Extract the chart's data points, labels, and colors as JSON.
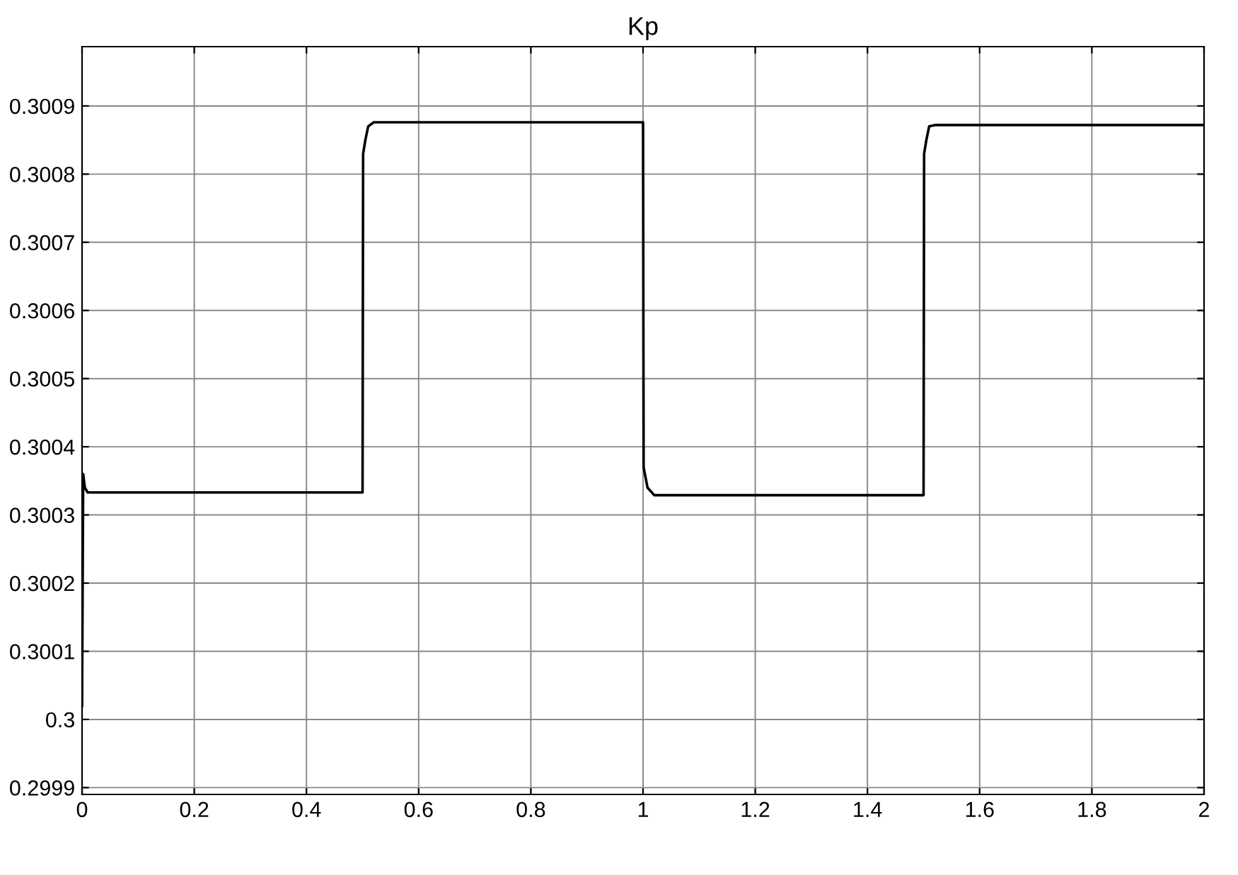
{
  "chart_data": {
    "type": "line",
    "title": "Kp",
    "x": [
      0,
      0.002,
      0.005,
      0.01,
      0.5,
      0.501,
      0.505,
      0.51,
      0.52,
      1.0,
      1.001,
      1.008,
      1.02,
      1.5,
      1.501,
      1.505,
      1.51,
      1.52,
      2
    ],
    "series": [
      {
        "color": "#000000",
        "values": [
          0.30002,
          0.30036,
          0.30034,
          0.300333,
          0.300333,
          0.30083,
          0.30085,
          0.30087,
          0.300876,
          0.300876,
          0.30037,
          0.30034,
          0.300329,
          0.300329,
          0.30083,
          0.30085,
          0.30087,
          0.300872,
          0.300872
        ]
      }
    ],
    "xlim": [
      0,
      2
    ],
    "xticks": [
      0,
      0.2,
      0.4,
      0.6,
      0.8,
      1,
      1.2,
      1.4,
      1.6,
      1.8,
      2
    ],
    "ylim": [
      0.29989,
      0.300987
    ],
    "yticks": [
      0.2999,
      0.3,
      0.3001,
      0.3002,
      0.3003,
      0.3004,
      0.3005,
      0.3006,
      0.3007,
      0.3008,
      0.3009
    ],
    "grid": true,
    "legend": false,
    "marker": "none",
    "line_style": "solid"
  }
}
